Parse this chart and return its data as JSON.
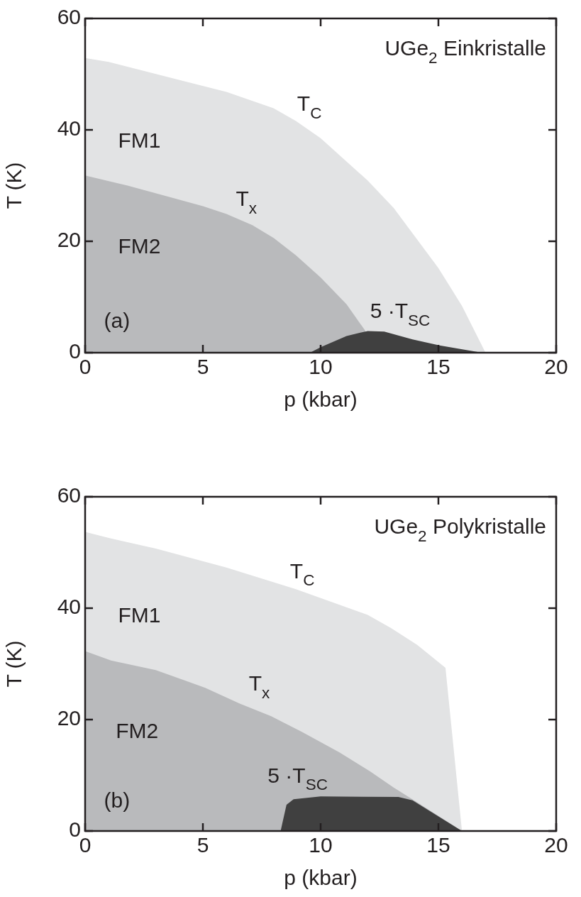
{
  "chart_data": [
    {
      "type": "area",
      "title": "UGe$_{2}$ Einkristalle",
      "xlabel": "p (kbar)",
      "ylabel": "T (K)",
      "xlim": [
        0,
        20
      ],
      "xticks": [
        0,
        5,
        10,
        15,
        20
      ],
      "ylim": [
        0,
        60
      ],
      "yticks": [
        0,
        20,
        40,
        60
      ],
      "grid": false,
      "legend": false,
      "series": [
        {
          "color": "#e2e3e4",
          "x": [
            0,
            1,
            6,
            8,
            8.95,
            10,
            12,
            13.1,
            15,
            16,
            17
          ],
          "values": [
            52.9,
            52.2,
            46.8,
            43.9,
            41.6,
            38.5,
            30.9,
            26,
            15.2,
            8.4,
            0
          ]
        },
        {
          "color": "#b9babc",
          "x": [
            0,
            1.8,
            5,
            6,
            7.1,
            8,
            8.95,
            10,
            11.1,
            11.9
          ],
          "values": [
            31.8,
            30,
            26.3,
            24.9,
            22.9,
            20.6,
            17.5,
            13.5,
            8.7,
            3.9
          ]
        },
        {
          "color": "#404040",
          "x": [
            9.55,
            10,
            11.1,
            12,
            12.7,
            13.9,
            15.05,
            16.85
          ],
          "values": [
            0,
            1,
            3,
            3.9,
            3.8,
            2.4,
            1.3,
            0
          ]
        }
      ],
      "annotations": [
        "T$_{C}$",
        "T$_{x}$",
        "FM1",
        "FM2",
        "(a)",
        "5 ·T$_{SC}$"
      ]
    },
    {
      "type": "area",
      "title": "UGe$_{2}$ Polykristalle",
      "xlabel": "p (kbar)",
      "ylabel": "T (K)",
      "xlim": [
        0,
        20
      ],
      "xticks": [
        0,
        5,
        10,
        15,
        20
      ],
      "ylim": [
        0,
        60
      ],
      "yticks": [
        0,
        20,
        40,
        60
      ],
      "grid": false,
      "legend": false,
      "series": [
        {
          "color": "#e2e3e4",
          "x": [
            0,
            1,
            3,
            6,
            8.95,
            12,
            13,
            14.1,
            15.3,
            16
          ],
          "values": [
            53.7,
            52.6,
            50.7,
            47.3,
            43.4,
            38.8,
            36.4,
            33.4,
            29.3,
            0
          ]
        },
        {
          "color": "#b9babc",
          "x": [
            0,
            1.1,
            3,
            5.1,
            6.55,
            7.9,
            9.2,
            10.8,
            12.1,
            13.1,
            14,
            16
          ],
          "values": [
            32.3,
            30.6,
            28.9,
            25.7,
            22.9,
            20.6,
            17.8,
            14.1,
            10.7,
            7.8,
            5.4,
            0
          ]
        },
        {
          "color": "#404040",
          "x": [
            8.3,
            8.55,
            8.85,
            10,
            13.3,
            13.9,
            16
          ],
          "values": [
            0,
            4.7,
            5.7,
            6.2,
            6.1,
            5.5,
            0
          ]
        }
      ],
      "annotations": [
        "T$_{C}$",
        "T$_{x}$",
        "FM1",
        "FM2",
        "(b)",
        "5 ·T$_{SC}$"
      ]
    }
  ]
}
